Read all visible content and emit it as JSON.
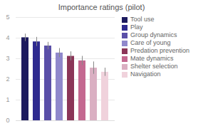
{
  "chart_data": {
    "type": "bar",
    "title": "Importance ratings (pilot)",
    "categories": [
      "Tool use",
      "Play",
      "Group dynamics",
      "Care of young",
      "Predation prevention",
      "Mate dynamics",
      "Shelter selection",
      "Navigation"
    ],
    "values": [
      4.02,
      3.82,
      3.62,
      3.28,
      3.12,
      2.9,
      2.55,
      2.35
    ],
    "errors": [
      0.18,
      0.22,
      0.18,
      0.22,
      0.22,
      0.22,
      0.3,
      0.2
    ],
    "colors": [
      "#1c1a5e",
      "#2e2a8f",
      "#5a4fa8",
      "#9088cc",
      "#8b3558",
      "#c46890",
      "#daafc2",
      "#f0d2dc"
    ],
    "ylim": [
      0,
      5
    ],
    "yticks": [
      0,
      1,
      2,
      3,
      4,
      5
    ],
    "grid": true,
    "legend": "right",
    "tick_labels": "y"
  }
}
